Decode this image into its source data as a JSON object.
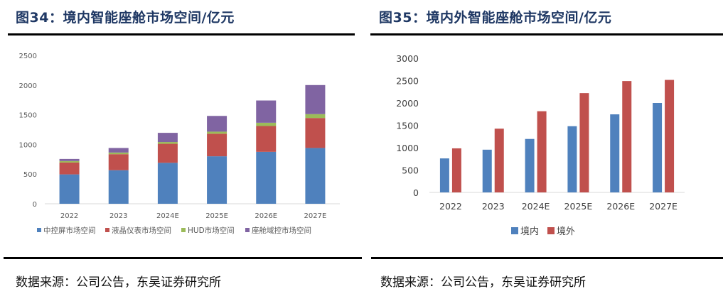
{
  "left": {
    "title": "图34：境内智能座舱市场空间/亿元",
    "source": "数据来源：公司公告，东吴证券研究所"
  },
  "right": {
    "title": "图35：境内外智能座舱市场空间/亿元",
    "source": "数据来源：公司公告，东吴证券研究所"
  },
  "chart_data": [
    {
      "type": "bar",
      "stacked": true,
      "title": "图34：境内智能座舱市场空间/亿元",
      "xlabel": "",
      "ylabel": "",
      "ylim": [
        0,
        2500
      ],
      "yticks": [
        0,
        500,
        1000,
        1500,
        2000,
        2500
      ],
      "grid": false,
      "legend": "bottom",
      "categories": [
        "2022",
        "2023",
        "2024E",
        "2025E",
        "2026E",
        "2027E"
      ],
      "series": [
        {
          "name": "中控屏市场空间",
          "color": "#4f81bd",
          "values": [
            495,
            565,
            690,
            800,
            875,
            940
          ]
        },
        {
          "name": "液晶仪表市场空间",
          "color": "#c0504d",
          "values": [
            200,
            270,
            320,
            380,
            435,
            505
          ]
        },
        {
          "name": "HUD市场空间",
          "color": "#9bbb59",
          "values": [
            25,
            28,
            30,
            35,
            55,
            65
          ]
        },
        {
          "name": "座舱域控市场空间",
          "color": "#8064a2",
          "values": [
            35,
            77,
            155,
            265,
            375,
            490
          ]
        }
      ]
    },
    {
      "type": "bar",
      "stacked": false,
      "title": "图35：境内外智能座舱市场空间/亿元",
      "xlabel": "",
      "ylabel": "",
      "ylim": [
        0,
        3000
      ],
      "yticks": [
        0,
        500,
        1000,
        1500,
        2000,
        2500,
        3000
      ],
      "grid": false,
      "legend": "bottom",
      "categories": [
        "2022",
        "2023",
        "2024E",
        "2025E",
        "2026E",
        "2027E"
      ],
      "series": [
        {
          "name": "境内",
          "color": "#4f81bd",
          "values": [
            760,
            955,
            1195,
            1480,
            1745,
            2000
          ]
        },
        {
          "name": "境外",
          "color": "#c0504d",
          "values": [
            985,
            1425,
            1815,
            2220,
            2490,
            2515
          ]
        }
      ]
    }
  ]
}
